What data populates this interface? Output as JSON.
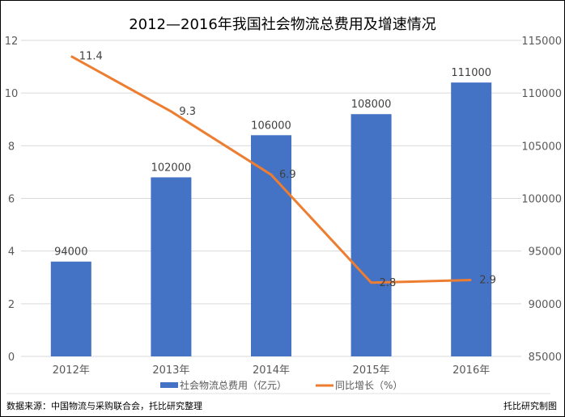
{
  "chart_data": {
    "type": "bar+line",
    "title": "2012—2016年我国社会物流总费用及增速情况",
    "categories": [
      "2012年",
      "2013年",
      "2014年",
      "2015年",
      "2016年"
    ],
    "series": [
      {
        "name": "社会物流总费用（亿元）",
        "type": "bar",
        "axis": "right",
        "values": [
          94000,
          102000,
          106000,
          108000,
          111000
        ],
        "color": "#4472C4"
      },
      {
        "name": "同比增长（%）",
        "type": "line",
        "axis": "left",
        "values": [
          11.4,
          9.3,
          6.9,
          2.8,
          2.9
        ],
        "color": "#ED7D31"
      }
    ],
    "left_axis": {
      "ylim": [
        0,
        12
      ],
      "ticks": [
        0,
        2,
        4,
        6,
        8,
        10,
        12
      ]
    },
    "right_axis": {
      "ylim": [
        85000,
        115000
      ],
      "ticks": [
        85000,
        90000,
        95000,
        100000,
        105000,
        110000,
        115000
      ]
    },
    "grid": true,
    "legend": "bottom"
  },
  "footer": {
    "source": "数据来源：中国物流与采购联合会，托比研究整理",
    "credit": "托比研究制图"
  }
}
